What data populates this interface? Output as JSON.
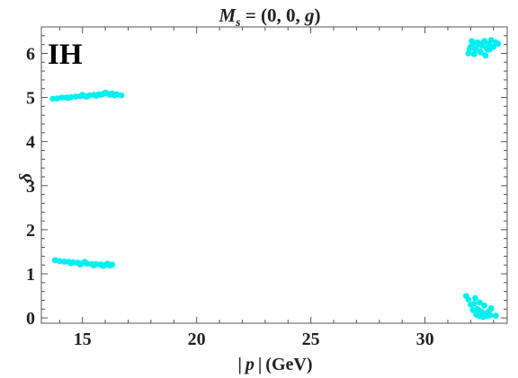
{
  "chart_data": {
    "type": "scatter",
    "title_parts": {
      "var": "M",
      "sub": "s",
      "rest": " = (0, 0, ",
      "g": "g",
      "close": ")"
    },
    "xlabel_parts": {
      "bar_left": "|",
      "var": "p",
      "bar_right": "|",
      "unit": "(GeV)"
    },
    "ylabel": "δ",
    "corner_label": "IH",
    "xlim": [
      13.2,
      33.6
    ],
    "ylim": [
      -0.12,
      6.6
    ],
    "xticks": [
      15,
      20,
      25,
      30
    ],
    "xtick_labels": [
      "15",
      "20",
      "25",
      "30"
    ],
    "yticks": [
      0,
      1,
      2,
      3,
      4,
      5,
      6
    ],
    "ytick_labels": [
      "0",
      "1",
      "2",
      "3",
      "4",
      "5",
      "6"
    ],
    "grid": false,
    "marker_color": "#00f0f0",
    "series": [
      {
        "points": [
          [
            13.7,
            4.97
          ],
          [
            13.9,
            4.98
          ],
          [
            14.1,
            5.0
          ],
          [
            14.3,
            5.0
          ],
          [
            14.5,
            5.01
          ],
          [
            14.7,
            5.02
          ],
          [
            14.9,
            5.03
          ],
          [
            15.1,
            5.03
          ],
          [
            15.3,
            5.05
          ],
          [
            15.5,
            5.06
          ],
          [
            15.7,
            5.07
          ],
          [
            15.9,
            5.08
          ],
          [
            16.1,
            5.09
          ],
          [
            16.3,
            5.09
          ],
          [
            16.5,
            5.07
          ],
          [
            16.7,
            5.05
          ],
          [
            15.0,
            5.06
          ],
          [
            15.6,
            5.04
          ],
          [
            16.0,
            5.11
          ],
          [
            14.4,
            4.99
          ],
          [
            15.2,
            5.02
          ],
          [
            15.8,
            5.06
          ],
          [
            16.2,
            5.06
          ],
          [
            16.4,
            5.05
          ],
          [
            13.8,
            1.31
          ],
          [
            14.0,
            1.29
          ],
          [
            14.2,
            1.28
          ],
          [
            14.4,
            1.27
          ],
          [
            14.6,
            1.26
          ],
          [
            14.8,
            1.25
          ],
          [
            15.0,
            1.24
          ],
          [
            15.2,
            1.23
          ],
          [
            15.4,
            1.22
          ],
          [
            15.6,
            1.22
          ],
          [
            15.8,
            1.21
          ],
          [
            16.0,
            1.2
          ],
          [
            16.2,
            1.19
          ],
          [
            16.3,
            1.21
          ],
          [
            15.1,
            1.27
          ],
          [
            14.5,
            1.24
          ],
          [
            15.5,
            1.19
          ],
          [
            15.9,
            1.18
          ],
          [
            16.1,
            1.23
          ],
          [
            14.9,
            1.21
          ],
          [
            31.9,
            6.0
          ],
          [
            32.0,
            6.15
          ],
          [
            32.1,
            6.22
          ],
          [
            32.2,
            6.1
          ],
          [
            32.3,
            6.25
          ],
          [
            32.4,
            6.05
          ],
          [
            32.5,
            6.18
          ],
          [
            32.6,
            6.28
          ],
          [
            32.7,
            6.12
          ],
          [
            32.8,
            6.22
          ],
          [
            32.9,
            6.3
          ],
          [
            33.0,
            6.15
          ],
          [
            33.1,
            6.25
          ],
          [
            32.15,
            5.98
          ],
          [
            32.45,
            6.02
          ],
          [
            32.75,
            6.08
          ],
          [
            31.95,
            6.1
          ],
          [
            32.55,
            6.24
          ],
          [
            32.85,
            6.1
          ],
          [
            32.35,
            6.2
          ],
          [
            32.65,
            5.95
          ],
          [
            32.05,
            6.28
          ],
          [
            33.2,
            6.22
          ],
          [
            31.8,
            0.5
          ],
          [
            31.9,
            0.42
          ],
          [
            32.0,
            0.3
          ],
          [
            32.1,
            0.18
          ],
          [
            32.2,
            0.45
          ],
          [
            32.3,
            0.2
          ],
          [
            32.4,
            0.35
          ],
          [
            32.5,
            0.12
          ],
          [
            32.6,
            0.28
          ],
          [
            32.7,
            0.05
          ],
          [
            32.8,
            0.15
          ],
          [
            32.9,
            0.22
          ],
          [
            33.1,
            0.05
          ],
          [
            32.25,
            0.08
          ],
          [
            32.55,
            0.02
          ],
          [
            32.45,
            0.15
          ],
          [
            32.15,
            0.32
          ],
          [
            32.35,
            0.05
          ],
          [
            32.85,
            0.06
          ],
          [
            32.65,
            0.1
          ]
        ]
      }
    ]
  }
}
